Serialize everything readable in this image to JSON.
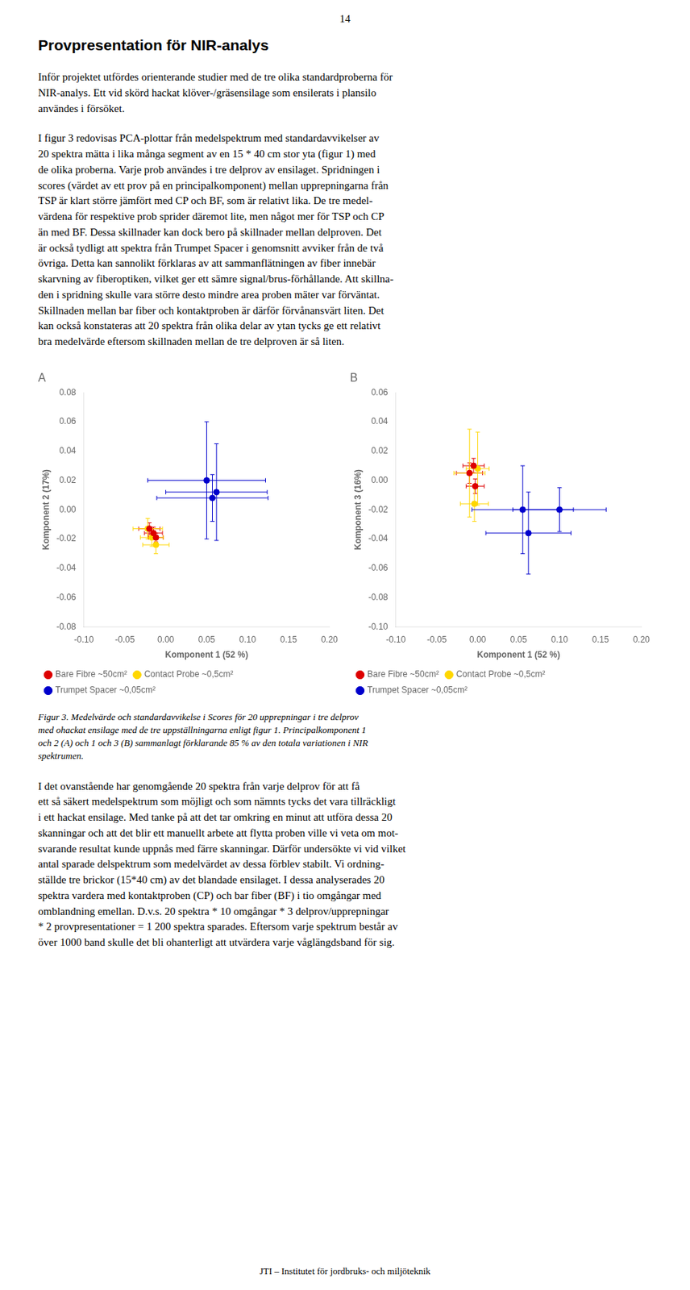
{
  "page_number": "14",
  "title": "Provpresentation för NIR-analys",
  "text_before": [
    "Inför projektet utfördes orienterande studier med de tre olika standardproberna för\nNIR-analys. Ett vid skörd hackat klöver-/gräsensilage som ensilerats i plansilo\nanvändes i försöket.",
    "I figur 3 redovisas PCA-plottar från medelspektrum med standardavvikelser av\n20 spektra mätta i lika många segment av en 15 * 40 cm stor yta (figur 1) med\nde olika proberna. Varje prob användes i tre delprov av ensilaget. Spridningen i\nscores (värdet av ett prov på en principalkomponent) mellan upprepningarna från\nTSP är klart större jämfört med CP och BF, som är relativt lika. De tre medel-\nvärdena för respektive prob sprider däremot lite, men något mer för TSP och CP\nän med BF. Dessa skillnader kan dock bero på skillnader mellan delproven. Det\när också tydligt att spektra från Trumpet Spacer i genomsnitt avviker från de två\növriga. Detta kan sannolikt förklaras av att sammanflätningen av fiber innebär\nskarvning av fiberoptiken, vilket ger ett sämre signal/brus-förhållande. Att skillna-\nden i spridning skulle vara större desto mindre area proben mäter var förväntat.\nSkillnaden mellan bar fiber och kontaktproben är därför förvånansvärt liten. Det\nkan också konstateras att 20 spektra från olika delar av ytan tycks ge ett relativt\nbra medelvärde eftersom skillnaden mellan de tre delproven är så liten."
  ],
  "chart_data": [
    {
      "type": "scatter",
      "title": "A",
      "x_label": "Komponent 1 (52 %)",
      "y_label": "Komponent 2 (17%)",
      "xlim": [
        -0.1,
        0.2
      ],
      "ylim": [
        -0.08,
        0.08
      ],
      "xticks": [
        {
          "value": -0.1,
          "label": "-0.10"
        },
        -0.05,
        {
          "value": 0,
          "label": "0.00"
        },
        0.05,
        {
          "value": 0.1,
          "label": "0.10"
        },
        0.15,
        {
          "value": 0.2,
          "label": "0.20"
        }
      ],
      "yticks": [
        -0.08,
        -0.06,
        -0.04,
        -0.02,
        {
          "value": 0,
          "label": "0.00"
        },
        0.02,
        0.04,
        0.06,
        0.08
      ],
      "grid": false,
      "legend": "lower left",
      "series": [
        {
          "name": "Bare Fibre ~50cm²",
          "color": "#DD0000",
          "marker": "circle",
          "x": [
            -0.02,
            -0.015,
            -0.012
          ],
          "values": [
            -0.013,
            -0.016,
            -0.019
          ],
          "xerr": [
            0.013,
            0.011,
            0.009
          ],
          "yerr": [
            0.004,
            0.004,
            0.003
          ]
        },
        {
          "name": "Contact Probe ~0,5cm²",
          "color": "#FFD700",
          "marker": "circle",
          "x": [
            -0.022,
            -0.017,
            -0.012
          ],
          "values": [
            -0.013,
            -0.019,
            -0.024
          ],
          "xerr": [
            0.018,
            0.014,
            0.016
          ],
          "yerr": [
            0.007,
            0.006,
            0.006
          ]
        },
        {
          "name": "Trumpet Spacer ~0,05cm²",
          "color": "#0000CC",
          "marker": "circle",
          "x": [
            0.05,
            0.062,
            0.057
          ],
          "values": [
            0.02,
            0.012,
            0.008
          ],
          "xerr": [
            0.072,
            0.062,
            0.068
          ],
          "yerr": [
            0.04,
            0.033,
            0.016
          ]
        }
      ]
    },
    {
      "type": "scatter",
      "title": "B",
      "x_label": "Komponent 1 (52 %)",
      "y_label": "Komponent 3 (16%)",
      "xlim": [
        -0.1,
        0.2
      ],
      "ylim": [
        -0.1,
        0.06
      ],
      "xticks": [
        {
          "value": -0.1,
          "label": "-0.10"
        },
        -0.05,
        {
          "value": 0,
          "label": "0.00"
        },
        0.05,
        {
          "value": 0.1,
          "label": "0.10"
        },
        0.15,
        {
          "value": 0.2,
          "label": "0.20"
        }
      ],
      "yticks": [
        {
          "value": -0.1,
          "label": "-0.10"
        },
        -0.08,
        -0.06,
        -0.04,
        -0.02,
        {
          "value": 0,
          "label": "0.00"
        },
        0.02,
        0.04,
        0.06
      ],
      "grid": false,
      "legend": "lower left",
      "series": [
        {
          "name": "Bare Fibre ~50cm²",
          "color": "#DD0000",
          "marker": "circle",
          "x": [
            -0.01,
            -0.005,
            -0.003
          ],
          "values": [
            0.005,
            0.01,
            -0.004
          ],
          "xerr": [
            0.016,
            0.013,
            0.011
          ],
          "yerr": [
            0.007,
            0.005,
            0.005
          ]
        },
        {
          "name": "Contact Probe ~0,5cm²",
          "color": "#FFD700",
          "marker": "circle",
          "x": [
            -0.01,
            0.0,
            -0.004
          ],
          "values": [
            0.005,
            0.008,
            -0.016
          ],
          "xerr": [
            0.019,
            0.014,
            0.017
          ],
          "yerr": [
            0.03,
            0.025,
            0.012
          ]
        },
        {
          "name": "Trumpet Spacer ~0,05cm²",
          "color": "#0000CC",
          "marker": "circle",
          "x": [
            0.055,
            0.062,
            0.1
          ],
          "values": [
            -0.02,
            -0.036,
            -0.02
          ],
          "xerr": [
            0.062,
            0.052,
            0.057
          ],
          "yerr": [
            0.03,
            0.028,
            0.015
          ]
        }
      ]
    }
  ],
  "caption": "Figur 3. Medelvärde och standardavvikelse i Scores för 20 upprepningar i tre delprov\nmed ohackat ensilage med de tre uppställningarna enligt figur 1. Principalkomponent 1\noch 2 (A) och 1 och 3 (B) sammanlagt förklarande 85 % av den totala variationen i NIR\nspektrumen.",
  "text_after": [
    "I det ovanstående har genomgående 20 spektra från varje delprov för att få\nett så säkert medelspektrum som möjligt och som nämnts tycks det vara tillräckligt\ni ett hackat ensilage. Med tanke på att det tar omkring en minut att utföra dessa 20\nskanningar och att det blir ett manuellt arbete att flytta proben ville vi veta om mot-\nsvarande resultat kunde uppnås med färre skanningar. Därför undersökte vi vid vilket\nantal sparade delspektrum som medelvärdet av dessa förblev stabilt. Vi ordning-\nställde tre brickor (15*40 cm) av det blandade ensilaget. I dessa analyserades 20\nspektra vardera med kontaktproben (CP) och bar fiber (BF) i tio omgångar med\nomblandning emellan. D.v.s. 20 spektra * 10 omgångar * 3 delprov/upprepningar\n* 2 provpresentationer = 1 200 spektra sparades. Eftersom varje spektrum består av\növer 1000 band skulle det bli ohanterligt att utvärdera varje våglängdsband för sig."
  ],
  "footer": "JTI – Institutet för jordbruks- och miljöteknik"
}
